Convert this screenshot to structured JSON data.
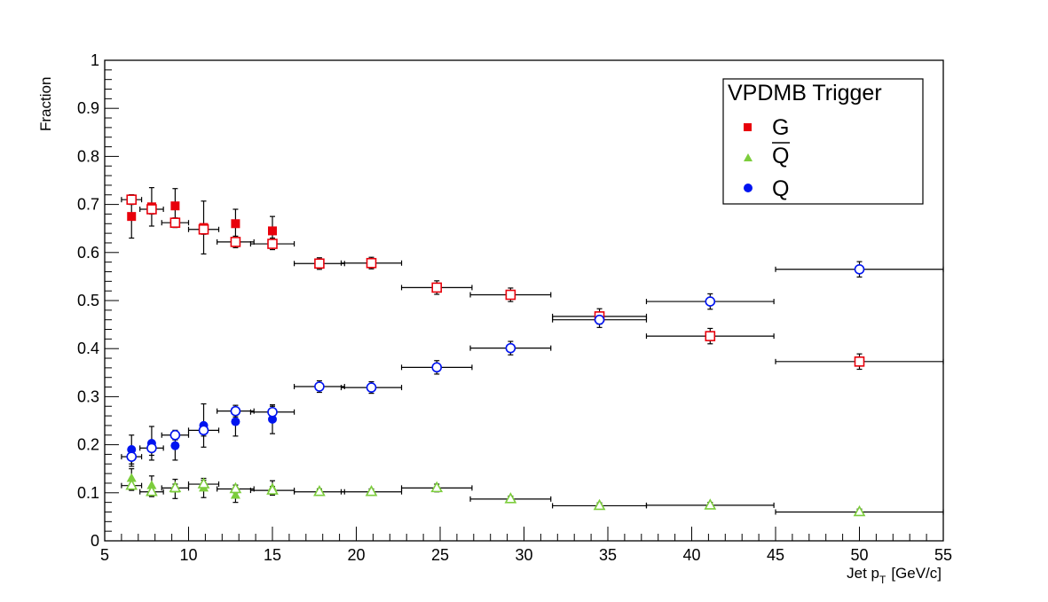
{
  "chart_data": {
    "type": "scatter",
    "title": "",
    "xlabel": "Jet p",
    "xlabel_subscript": "T",
    "xlabel_unit": "[GeV/c]",
    "ylabel": "Fraction",
    "xlim": [
      5,
      55
    ],
    "ylim": [
      0,
      1
    ],
    "x_ticks": [
      5,
      10,
      15,
      20,
      25,
      30,
      35,
      40,
      45,
      50,
      55
    ],
    "y_ticks": [
      0,
      0.1,
      0.2,
      0.3,
      0.4,
      0.5,
      0.6,
      0.7,
      0.8,
      0.9,
      1
    ],
    "y_tick_labels": [
      "0",
      "0.1",
      "0.2",
      "0.3",
      "0.4",
      "0.5",
      "0.6",
      "0.7",
      "0.8",
      "0.9",
      "1"
    ],
    "grid": false,
    "legend": {
      "title": "VPDMB Trigger",
      "position": "top-right",
      "entries": [
        {
          "label": "G",
          "marker": "square",
          "color": "#e8000b"
        },
        {
          "label": "Q",
          "overline": true,
          "marker": "triangle",
          "color": "#7ccd3c"
        },
        {
          "label": "Q",
          "marker": "circle",
          "color": "#0014f0"
        }
      ]
    },
    "series": [
      {
        "legend_label": "G",
        "marker": "square",
        "filled": true,
        "color": "#e8000b",
        "points": [
          {
            "x": 6.6,
            "y": 0.675,
            "xerr": 0,
            "yerr": 0.045
          },
          {
            "x": 7.8,
            "y": 0.695,
            "xerr": 0,
            "yerr": 0.04
          },
          {
            "x": 9.2,
            "y": 0.697,
            "xerr": 0,
            "yerr": 0.036
          },
          {
            "x": 10.9,
            "y": 0.652,
            "xerr": 0,
            "yerr": 0.055
          },
          {
            "x": 12.8,
            "y": 0.66,
            "xerr": 0,
            "yerr": 0.03
          },
          {
            "x": 15.0,
            "y": 0.645,
            "xerr": 0,
            "yerr": 0.03
          }
        ]
      },
      {
        "legend_label": "Q",
        "marker": "circle",
        "filled": true,
        "color": "#0014f0",
        "points": [
          {
            "x": 6.6,
            "y": 0.19,
            "xerr": 0,
            "yerr": 0.03
          },
          {
            "x": 7.8,
            "y": 0.203,
            "xerr": 0,
            "yerr": 0.035
          },
          {
            "x": 9.2,
            "y": 0.198,
            "xerr": 0,
            "yerr": 0.03
          },
          {
            "x": 10.9,
            "y": 0.24,
            "xerr": 0,
            "yerr": 0.045
          },
          {
            "x": 12.8,
            "y": 0.248,
            "xerr": 0,
            "yerr": 0.03
          },
          {
            "x": 15.0,
            "y": 0.253,
            "xerr": 0,
            "yerr": 0.03
          }
        ]
      },
      {
        "legend_label": "Q-bar",
        "marker": "triangle",
        "filled": true,
        "color": "#7ccd3c",
        "points": [
          {
            "x": 6.6,
            "y": 0.13,
            "xerr": 0,
            "yerr": 0.02
          },
          {
            "x": 7.8,
            "y": 0.115,
            "xerr": 0,
            "yerr": 0.02
          },
          {
            "x": 9.2,
            "y": 0.108,
            "xerr": 0,
            "yerr": 0.02
          },
          {
            "x": 10.9,
            "y": 0.11,
            "xerr": 0,
            "yerr": 0.02
          },
          {
            "x": 12.8,
            "y": 0.095,
            "xerr": 0,
            "yerr": 0.015
          },
          {
            "x": 15.0,
            "y": 0.11,
            "xerr": 0,
            "yerr": 0.015
          }
        ]
      },
      {
        "legend_label": "G",
        "marker": "square",
        "filled": false,
        "color": "#e8000b",
        "points": [
          {
            "x": 6.6,
            "y": 0.71,
            "xerr": 0.6,
            "yerr": 0.01
          },
          {
            "x": 7.8,
            "y": 0.69,
            "xerr": 0.7,
            "yerr": 0.01
          },
          {
            "x": 9.2,
            "y": 0.662,
            "xerr": 0.8,
            "yerr": 0.01
          },
          {
            "x": 10.9,
            "y": 0.648,
            "xerr": 0.9,
            "yerr": 0.01
          },
          {
            "x": 12.8,
            "y": 0.622,
            "xerr": 1.1,
            "yerr": 0.012
          },
          {
            "x": 15.0,
            "y": 0.618,
            "xerr": 1.3,
            "yerr": 0.012
          },
          {
            "x": 17.8,
            "y": 0.577,
            "xerr": 1.5,
            "yerr": 0.012
          },
          {
            "x": 20.9,
            "y": 0.578,
            "xerr": 1.8,
            "yerr": 0.012
          },
          {
            "x": 24.8,
            "y": 0.527,
            "xerr": 2.1,
            "yerr": 0.014
          },
          {
            "x": 29.2,
            "y": 0.512,
            "xerr": 2.4,
            "yerr": 0.014
          },
          {
            "x": 34.5,
            "y": 0.467,
            "xerr": 2.8,
            "yerr": 0.016
          },
          {
            "x": 41.1,
            "y": 0.426,
            "xerr": 3.8,
            "yerr": 0.016
          },
          {
            "x": 50.0,
            "y": 0.373,
            "xerr": 5.0,
            "yerr": 0.016
          }
        ]
      },
      {
        "legend_label": "Q",
        "marker": "circle",
        "filled": false,
        "color": "#0014f0",
        "points": [
          {
            "x": 6.6,
            "y": 0.175,
            "xerr": 0.6,
            "yerr": 0.02
          },
          {
            "x": 7.8,
            "y": 0.193,
            "xerr": 0.7,
            "yerr": 0.015
          },
          {
            "x": 9.2,
            "y": 0.22,
            "xerr": 0.8,
            "yerr": 0.01
          },
          {
            "x": 10.9,
            "y": 0.23,
            "xerr": 0.9,
            "yerr": 0.012
          },
          {
            "x": 12.8,
            "y": 0.27,
            "xerr": 1.1,
            "yerr": 0.012
          },
          {
            "x": 15.0,
            "y": 0.268,
            "xerr": 1.3,
            "yerr": 0.012
          },
          {
            "x": 17.8,
            "y": 0.321,
            "xerr": 1.5,
            "yerr": 0.012
          },
          {
            "x": 20.9,
            "y": 0.319,
            "xerr": 1.8,
            "yerr": 0.012
          },
          {
            "x": 24.8,
            "y": 0.361,
            "xerr": 2.1,
            "yerr": 0.014
          },
          {
            "x": 29.2,
            "y": 0.401,
            "xerr": 2.4,
            "yerr": 0.014
          },
          {
            "x": 34.5,
            "y": 0.46,
            "xerr": 2.8,
            "yerr": 0.016
          },
          {
            "x": 41.1,
            "y": 0.498,
            "xerr": 3.8,
            "yerr": 0.016
          },
          {
            "x": 50.0,
            "y": 0.565,
            "xerr": 5.0,
            "yerr": 0.016
          }
        ]
      },
      {
        "legend_label": "Q-bar",
        "marker": "triangle",
        "filled": false,
        "color": "#7ccd3c",
        "points": [
          {
            "x": 6.6,
            "y": 0.115,
            "xerr": 0.6,
            "yerr": 0.01
          },
          {
            "x": 7.8,
            "y": 0.102,
            "xerr": 0.7,
            "yerr": 0.01
          },
          {
            "x": 9.2,
            "y": 0.11,
            "xerr": 0.8,
            "yerr": 0.008
          },
          {
            "x": 10.9,
            "y": 0.118,
            "xerr": 0.9,
            "yerr": 0.008
          },
          {
            "x": 12.8,
            "y": 0.108,
            "xerr": 1.1,
            "yerr": 0.008
          },
          {
            "x": 15.0,
            "y": 0.105,
            "xerr": 1.3,
            "yerr": 0.008
          },
          {
            "x": 17.8,
            "y": 0.102,
            "xerr": 1.5,
            "yerr": 0.006
          },
          {
            "x": 20.9,
            "y": 0.102,
            "xerr": 1.8,
            "yerr": 0.006
          },
          {
            "x": 24.8,
            "y": 0.11,
            "xerr": 2.1,
            "yerr": 0.008
          },
          {
            "x": 29.2,
            "y": 0.087,
            "xerr": 2.4,
            "yerr": 0.006
          },
          {
            "x": 34.5,
            "y": 0.073,
            "xerr": 2.8,
            "yerr": 0.006
          },
          {
            "x": 41.1,
            "y": 0.074,
            "xerr": 3.8,
            "yerr": 0.006
          },
          {
            "x": 50.0,
            "y": 0.06,
            "xerr": 5.0,
            "yerr": 0.006
          }
        ]
      }
    ]
  }
}
